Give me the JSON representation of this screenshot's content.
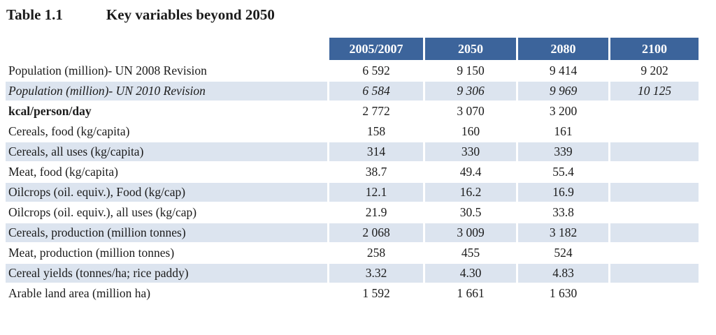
{
  "title": {
    "label": "Table 1.1",
    "text": "Key variables beyond 2050"
  },
  "table": {
    "columns": [
      "2005/2007",
      "2050",
      "2080",
      "2100"
    ],
    "rows": [
      {
        "label": "Population (million)- UN 2008 Revision",
        "values": [
          "6 592",
          "9 150",
          "9 414",
          "9 202"
        ]
      },
      {
        "label": "Population (million)- UN 2010 Revision",
        "values": [
          "6 584",
          "9 306",
          "9 969",
          "10 125"
        ]
      },
      {
        "label": "kcal/person/day",
        "values": [
          "2 772",
          "3 070",
          "3 200",
          ""
        ]
      },
      {
        "label": "Cereals, food (kg/capita)",
        "values": [
          "158",
          "160",
          "161",
          ""
        ]
      },
      {
        "label": "Cereals, all uses (kg/capita)",
        "values": [
          "314",
          "330",
          "339",
          ""
        ]
      },
      {
        "label": "Meat, food (kg/capita)",
        "values": [
          "38.7",
          "49.4",
          "55.4",
          ""
        ]
      },
      {
        "label": "Oilcrops (oil. equiv.), Food (kg/cap)",
        "values": [
          "12.1",
          "16.2",
          "16.9",
          ""
        ]
      },
      {
        "label": "Oilcrops (oil. equiv.), all uses (kg/cap)",
        "values": [
          "21.9",
          "30.5",
          "33.8",
          ""
        ]
      },
      {
        "label": "Cereals, production (million tonnes)",
        "values": [
          "2 068",
          "3 009",
          "3 182",
          ""
        ]
      },
      {
        "label": "Meat, production (million tonnes)",
        "values": [
          "258",
          "455",
          "524",
          ""
        ]
      },
      {
        "label": "Cereal yields (tonnes/ha; rice paddy)",
        "values": [
          "3.32",
          "4.30",
          "4.83",
          ""
        ]
      },
      {
        "label": "Arable land area (million ha)",
        "values": [
          "1 592",
          "1 661",
          "1 630",
          ""
        ]
      }
    ]
  },
  "colors": {
    "header_bg": "#3C649B",
    "header_text": "#FFFFFF",
    "shaded_bg": "#DCE4EF",
    "text": "#1B1B1B",
    "page_bg": "#FFFFFF"
  }
}
